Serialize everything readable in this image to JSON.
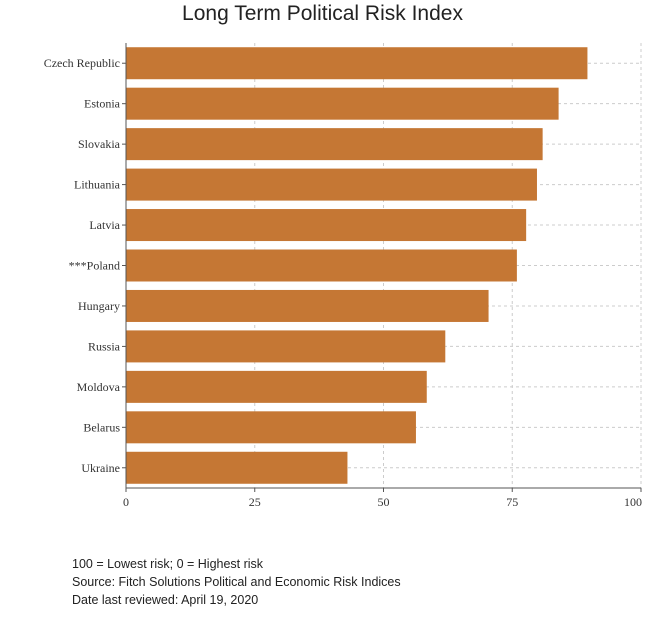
{
  "chart_data": {
    "type": "bar",
    "orientation": "horizontal",
    "title": "Long Term Political Risk Index",
    "categories": [
      "Czech Republic",
      "Estonia",
      "Slovakia",
      "Lithuania",
      "Latvia",
      "***Poland",
      "Hungary",
      "Russia",
      "Moldova",
      "Belarus",
      "Ukraine"
    ],
    "values": [
      89.6,
      84.0,
      80.9,
      79.8,
      77.7,
      75.9,
      70.4,
      62.0,
      58.4,
      56.3,
      43.0
    ],
    "xlim": [
      0,
      100
    ],
    "xticks": [
      "0",
      "25",
      "50",
      "75",
      "100"
    ],
    "xlabel": "",
    "ylabel": "",
    "grid": true,
    "bar_color": "#c57734"
  },
  "notes": {
    "line1": "100 = Lowest risk; 0 = Highest risk",
    "line2": "Source: Fitch Solutions Political and Economic Risk Indices",
    "line3": "Date last reviewed: April 19, 2020"
  }
}
